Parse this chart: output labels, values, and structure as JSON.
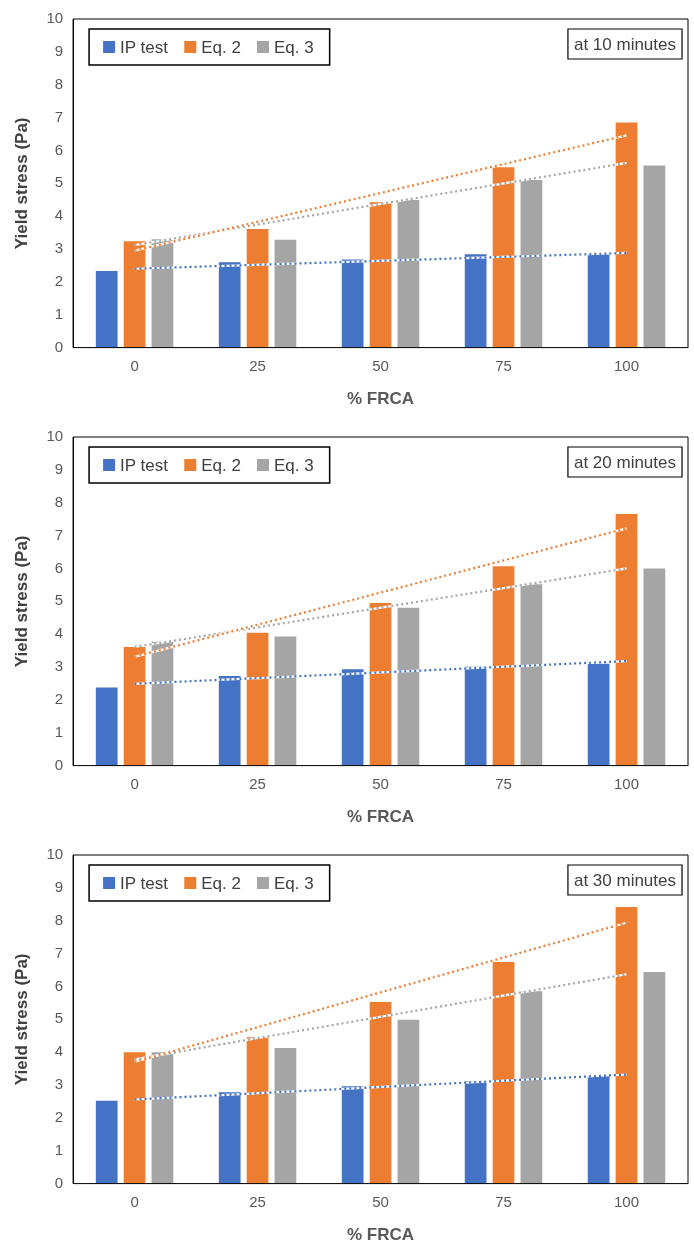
{
  "chart_data": [
    {
      "type": "bar",
      "xlabel": "% FRCA",
      "ylabel": "Yield stress (Pa)",
      "categories": [
        "0",
        "25",
        "50",
        "75",
        "100"
      ],
      "ylim": [
        0,
        10
      ],
      "yticks": [
        0,
        1,
        2,
        3,
        4,
        5,
        6,
        7,
        8,
        9,
        10
      ],
      "legend": "top left",
      "annotations": [
        "at 10 minutes"
      ],
      "series": [
        {
          "name": "IP test",
          "color": "#4472c4",
          "values": [
            2.33,
            2.6,
            2.68,
            2.84,
            2.87
          ]
        },
        {
          "name": "Eq. 2",
          "color": "#ed7d31",
          "values": [
            3.24,
            3.61,
            4.42,
            5.49,
            6.85
          ]
        },
        {
          "name": "Eq. 3",
          "color": "#a5a5a5",
          "values": [
            3.3,
            3.28,
            4.49,
            5.1,
            5.54
          ]
        },
        {
          "type": "line",
          "color": "#4472c4",
          "x": [
            "0",
            "100"
          ],
          "values": [
            2.4,
            2.88
          ],
          "line_style": "dotted",
          "marker": "none"
        },
        {
          "type": "line",
          "color": "#ed7d31",
          "x": [
            "0",
            "100"
          ],
          "values": [
            2.95,
            6.46
          ],
          "line_style": "dotted",
          "marker": "none"
        },
        {
          "type": "line",
          "color": "#a5a5a5",
          "x": [
            "0",
            "100"
          ],
          "values": [
            3.12,
            5.62
          ],
          "line_style": "dotted",
          "marker": "none"
        }
      ]
    },
    {
      "type": "bar",
      "xlabel": "% FRCA",
      "ylabel": "Yield stress (Pa)",
      "categories": [
        "0",
        "25",
        "50",
        "75",
        "100"
      ],
      "ylim": [
        0,
        10
      ],
      "yticks": [
        0,
        1,
        2,
        3,
        4,
        5,
        6,
        7,
        8,
        9,
        10
      ],
      "legend": "top left",
      "annotations": [
        "at 20 minutes"
      ],
      "series": [
        {
          "name": "IP test",
          "color": "#4472c4",
          "values": [
            2.38,
            2.73,
            2.93,
            3.01,
            3.1
          ]
        },
        {
          "name": "Eq. 2",
          "color": "#ed7d31",
          "values": [
            3.61,
            4.04,
            4.95,
            6.07,
            7.66
          ]
        },
        {
          "name": "Eq. 3",
          "color": "#a5a5a5",
          "values": [
            3.77,
            3.93,
            4.8,
            5.52,
            6.0
          ]
        },
        {
          "type": "line",
          "color": "#4472c4",
          "x": [
            "0",
            "100"
          ],
          "values": [
            2.49,
            3.18
          ],
          "line_style": "dotted",
          "marker": "none"
        },
        {
          "type": "line",
          "color": "#ed7d31",
          "x": [
            "0",
            "100"
          ],
          "values": [
            3.31,
            7.22
          ],
          "line_style": "dotted",
          "marker": "none"
        },
        {
          "type": "line",
          "color": "#a5a5a5",
          "x": [
            "0",
            "100"
          ],
          "values": [
            3.61,
            6.0
          ],
          "line_style": "dotted",
          "marker": "none"
        }
      ]
    },
    {
      "type": "bar",
      "xlabel": "% FRCA",
      "ylabel": "Yield stress (Pa)",
      "categories": [
        "0",
        "25",
        "50",
        "75",
        "100"
      ],
      "ylim": [
        0,
        10
      ],
      "yticks": [
        0,
        1,
        2,
        3,
        4,
        5,
        6,
        7,
        8,
        9,
        10
      ],
      "legend": "top left",
      "annotations": [
        "at 30 minutes"
      ],
      "series": [
        {
          "name": "IP test",
          "color": "#4472c4",
          "values": [
            2.52,
            2.78,
            2.96,
            3.12,
            3.28
          ]
        },
        {
          "name": "Eq. 2",
          "color": "#ed7d31",
          "values": [
            4.0,
            4.45,
            5.53,
            6.74,
            8.42
          ]
        },
        {
          "name": "Eq. 3",
          "color": "#a5a5a5",
          "values": [
            4.0,
            4.13,
            4.99,
            5.85,
            6.44
          ]
        },
        {
          "type": "line",
          "color": "#4472c4",
          "x": [
            "0",
            "100"
          ],
          "values": [
            2.56,
            3.32
          ],
          "line_style": "dotted",
          "marker": "none"
        },
        {
          "type": "line",
          "color": "#ed7d31",
          "x": [
            "0",
            "100"
          ],
          "values": [
            3.7,
            7.94
          ],
          "line_style": "dotted",
          "marker": "none"
        },
        {
          "type": "line",
          "color": "#a5a5a5",
          "x": [
            "0",
            "100"
          ],
          "values": [
            3.78,
            6.37
          ],
          "line_style": "dotted",
          "marker": "none"
        }
      ]
    }
  ]
}
